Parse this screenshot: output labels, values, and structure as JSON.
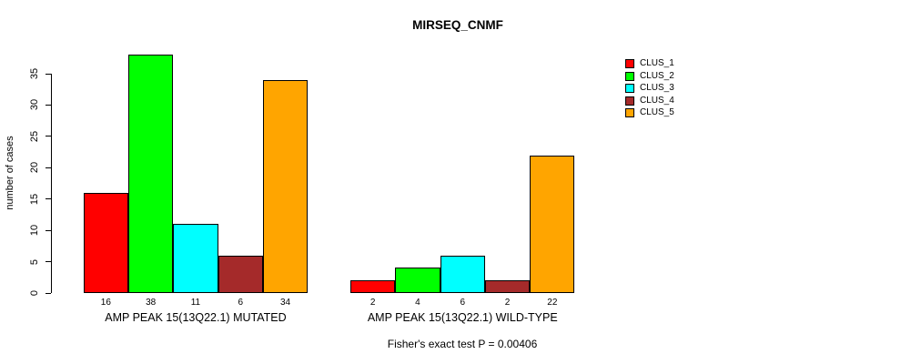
{
  "chart_data": {
    "type": "bar",
    "title": "MIRSEQ_CNMF",
    "xlabel": "",
    "ylabel": "number of cases",
    "ylim": [
      0,
      38
    ],
    "yticks": [
      0,
      5,
      10,
      15,
      20,
      25,
      30,
      35
    ],
    "grid": false,
    "legend_position": "right",
    "bar_value_labels": true,
    "categories": [
      "AMP PEAK 15(13Q22.1) MUTATED",
      "AMP PEAK 15(13Q22.1) WILD-TYPE"
    ],
    "series": [
      {
        "name": "CLUS_1",
        "color": "#ff0000",
        "values": [
          16,
          2
        ]
      },
      {
        "name": "CLUS_2",
        "color": "#00ff00",
        "values": [
          38,
          4
        ]
      },
      {
        "name": "CLUS_3",
        "color": "#00ffff",
        "values": [
          11,
          6
        ]
      },
      {
        "name": "CLUS_4",
        "color": "#a52a2a",
        "values": [
          6,
          2
        ]
      },
      {
        "name": "CLUS_5",
        "color": "#ffa500",
        "values": [
          34,
          22
        ]
      }
    ],
    "annotation": "Fisher's exact test P = 0.00406"
  }
}
